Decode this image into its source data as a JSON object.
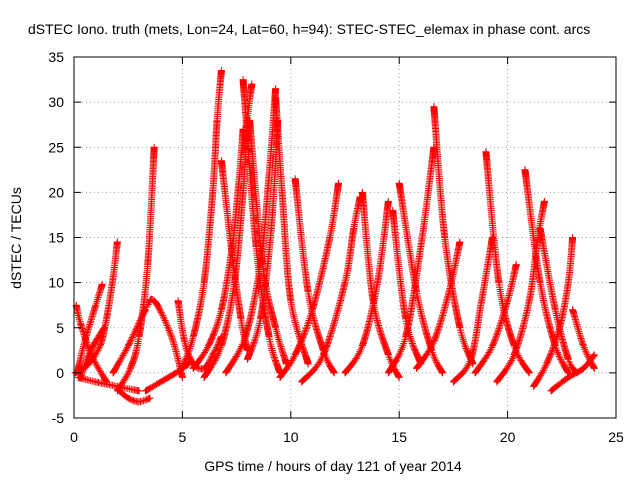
{
  "chart_data": {
    "type": "scatter",
    "title": "dSTEC Iono. truth (mets, Lon=24, Lat=60, h=94): STEC-STEC_elemax in phase cont. arcs",
    "xlabel": "GPS time / hours of day 121 of year 2014",
    "ylabel": "dSTEC  / TECUs",
    "xlim": [
      0,
      25
    ],
    "ylim": [
      -5,
      35
    ],
    "xticks": [
      0,
      5,
      10,
      15,
      20,
      25
    ],
    "yticks": [
      -5,
      0,
      5,
      10,
      15,
      20,
      25,
      30,
      35
    ],
    "grid": true,
    "marker": "+",
    "color": "#ff0000",
    "series": [
      {
        "x": [
          0.05,
          0.6,
          1.2,
          1.5,
          1.8,
          2.0
        ],
        "y": [
          0.0,
          0.8,
          3.0,
          6.0,
          10.5,
          14.5
        ]
      },
      {
        "x": [
          0.1,
          0.3,
          0.8,
          1.5
        ],
        "y": [
          7.5,
          5.5,
          2.0,
          -1.0
        ]
      },
      {
        "x": [
          0.2,
          0.5,
          1.0,
          1.3
        ],
        "y": [
          0.5,
          3.5,
          7.5,
          9.8
        ]
      },
      {
        "x": [
          0.3,
          0.6,
          1.0,
          1.4
        ],
        "y": [
          -0.5,
          1.5,
          3.5,
          5.0
        ]
      },
      {
        "x": [
          2.0,
          2.6,
          3.0,
          3.4,
          3.7
        ],
        "y": [
          -2.0,
          0.5,
          4.0,
          12.0,
          25.0
        ]
      },
      {
        "x": [
          2.1,
          2.5,
          3.0,
          3.5
        ],
        "y": [
          -2.0,
          -2.8,
          -3.2,
          -2.8
        ]
      },
      {
        "x": [
          0.2,
          1.0,
          2.0,
          3.0
        ],
        "y": [
          -0.5,
          -1.0,
          -1.5,
          -2.0
        ]
      },
      {
        "x": [
          1.8,
          2.5,
          3.3,
          3.7,
          4.5,
          5.0
        ],
        "y": [
          0.0,
          3.0,
          7.0,
          8.0,
          4.0,
          -0.5
        ]
      },
      {
        "x": [
          3.3,
          4.0,
          4.7,
          5.3
        ],
        "y": [
          -2.0,
          -1.0,
          0.0,
          1.0
        ]
      },
      {
        "x": [
          4.8,
          5.1,
          5.5,
          6.0,
          6.4,
          6.8
        ],
        "y": [
          8.0,
          3.5,
          1.0,
          0.5,
          2.0,
          4.0
        ]
      },
      {
        "x": [
          5.0,
          5.5,
          6.0,
          6.4,
          6.6,
          6.8
        ],
        "y": [
          0.5,
          4.0,
          10.0,
          20.0,
          28.0,
          33.5
        ]
      },
      {
        "x": [
          6.8,
          7.3,
          7.7,
          8.0
        ],
        "y": [
          23.5,
          13.0,
          6.0,
          2.5
        ]
      },
      {
        "x": [
          5.5,
          6.2,
          6.8,
          7.3,
          7.6,
          7.8
        ],
        "y": [
          0.5,
          3.0,
          7.0,
          14.0,
          21.0,
          27.0
        ]
      },
      {
        "x": [
          7.8,
          8.4,
          9.0,
          9.5
        ],
        "y": [
          32.5,
          14.0,
          4.0,
          0.0
        ]
      },
      {
        "x": [
          6.0,
          6.8,
          7.4,
          7.8,
          8.0,
          8.2
        ],
        "y": [
          -0.5,
          3.0,
          10.0,
          20.0,
          28.0,
          32.0
        ]
      },
      {
        "x": [
          8.1,
          8.7,
          9.3,
          9.8
        ],
        "y": [
          28.0,
          12.0,
          5.0,
          1.0
        ]
      },
      {
        "x": [
          7.0,
          7.9,
          8.6,
          9.0,
          9.3
        ],
        "y": [
          0.0,
          4.0,
          12.0,
          22.0,
          31.5
        ]
      },
      {
        "x": [
          9.3,
          9.6,
          10.0,
          10.8
        ],
        "y": [
          30.5,
          20.0,
          8.0,
          1.0
        ]
      },
      {
        "x": [
          8.0,
          8.6,
          9.1,
          9.4
        ],
        "y": [
          1.5,
          6.0,
          16.0,
          28.0
        ]
      },
      {
        "x": [
          9.5,
          10.2,
          11.0,
          11.8,
          12.2
        ],
        "y": [
          -0.5,
          2.0,
          7.0,
          15.0,
          21.0
        ]
      },
      {
        "x": [
          10.2,
          10.8,
          11.5,
          12.0
        ],
        "y": [
          21.5,
          9.0,
          2.5,
          0.0
        ]
      },
      {
        "x": [
          10.5,
          11.5,
          12.5,
          12.9,
          13.2
        ],
        "y": [
          -1.0,
          2.0,
          10.0,
          16.0,
          19.5
        ]
      },
      {
        "x": [
          13.3,
          13.8,
          14.5,
          15.0
        ],
        "y": [
          20.0,
          8.0,
          2.0,
          -0.5
        ]
      },
      {
        "x": [
          12.5,
          13.3,
          14.0,
          14.5
        ],
        "y": [
          0.0,
          3.0,
          10.0,
          19.0
        ]
      },
      {
        "x": [
          14.7,
          15.3,
          16.0
        ],
        "y": [
          18.0,
          6.0,
          1.0
        ]
      },
      {
        "x": [
          15.0,
          15.8,
          16.5,
          17.0
        ],
        "y": [
          21.0,
          9.0,
          2.5,
          0.0
        ]
      },
      {
        "x": [
          14.5,
          15.3,
          16.0,
          16.6
        ],
        "y": [
          0.0,
          4.0,
          14.0,
          25.0
        ]
      },
      {
        "x": [
          16.6,
          17.1,
          17.8,
          18.4
        ],
        "y": [
          29.5,
          15.0,
          5.0,
          1.0
        ]
      },
      {
        "x": [
          15.8,
          16.6,
          17.3,
          17.8
        ],
        "y": [
          0.5,
          3.5,
          9.0,
          14.5
        ]
      },
      {
        "x": [
          17.5,
          18.3,
          18.8,
          19.3
        ],
        "y": [
          -1.0,
          1.5,
          8.0,
          15.0
        ]
      },
      {
        "x": [
          19.0,
          19.6,
          20.3,
          21.0
        ],
        "y": [
          24.5,
          10.0,
          3.0,
          0.0
        ]
      },
      {
        "x": [
          18.5,
          19.3,
          20.0,
          20.4
        ],
        "y": [
          0.0,
          3.0,
          8.0,
          12.0
        ]
      },
      {
        "x": [
          19.5,
          20.3,
          21.0,
          21.4,
          21.7
        ],
        "y": [
          -1.0,
          2.0,
          8.0,
          15.0,
          19.0
        ]
      },
      {
        "x": [
          20.8,
          21.5,
          22.2,
          22.8
        ],
        "y": [
          22.5,
          10.0,
          3.0,
          0.0
        ]
      },
      {
        "x": [
          21.5,
          22.2,
          22.8,
          23.2
        ],
        "y": [
          16.0,
          7.0,
          1.5,
          0.0
        ]
      },
      {
        "x": [
          21.2,
          21.8,
          22.4,
          22.8,
          23.0
        ],
        "y": [
          -1.5,
          1.0,
          5.0,
          10.0,
          15.0
        ]
      },
      {
        "x": [
          22.0,
          22.8,
          23.5,
          24.0
        ],
        "y": [
          -2.0,
          -0.5,
          0.5,
          2.0
        ]
      },
      {
        "x": [
          23.0,
          23.5,
          24.0
        ],
        "y": [
          7.0,
          3.0,
          0.5
        ]
      }
    ]
  }
}
